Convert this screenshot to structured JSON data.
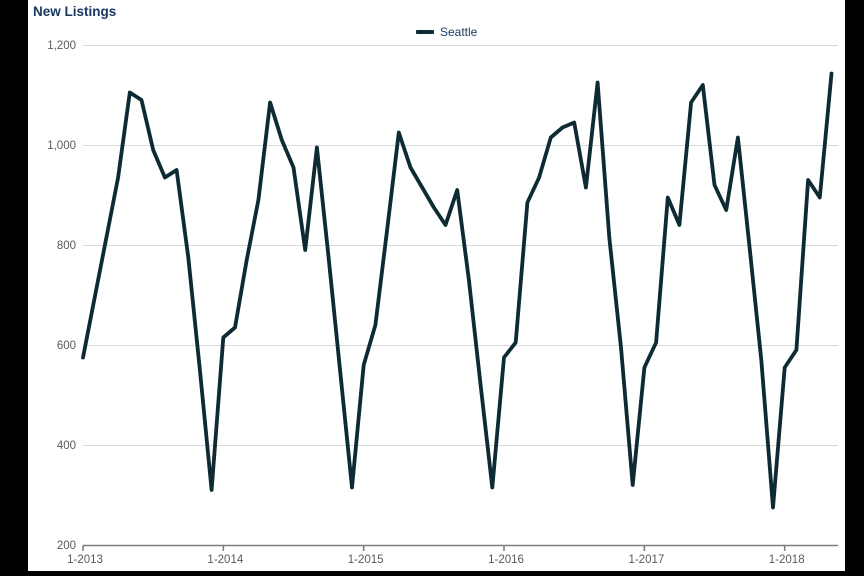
{
  "page": {
    "title": "New Listings",
    "title_color": "#17375e",
    "background_color": "#000000",
    "card_color": "#ffffff"
  },
  "legend": {
    "label": "Seattle",
    "swatch_color": "#0e2a33",
    "text_color": "#17375e"
  },
  "axes": {
    "label_color": "#595959",
    "grid_color": "#d9d9d9",
    "axis_color": "#7f7f7f"
  },
  "chart_data": {
    "type": "line",
    "title": "New Listings",
    "xlabel": "",
    "ylabel": "",
    "ylim": [
      200,
      1200
    ],
    "grid": "horizontal",
    "legend_position": "top-center",
    "x_tick_labels": [
      "1-2013",
      "1-2014",
      "1-2015",
      "1-2016",
      "1-2017",
      "1-2018"
    ],
    "x_tick_month_indices": [
      0,
      12,
      24,
      36,
      48,
      60
    ],
    "y_tick_values": [
      200,
      400,
      600,
      800,
      1000,
      1200
    ],
    "y_tick_labels": [
      "200",
      "400",
      "600",
      "800",
      "1,000",
      "1,200"
    ],
    "x_start": "2013-01",
    "x_end": "2018-05",
    "series": [
      {
        "name": "Seattle",
        "color": "#0e2a33",
        "values": [
          575,
          695,
          815,
          935,
          1105,
          1090,
          990,
          935,
          950,
          775,
          550,
          310,
          615,
          635,
          770,
          890,
          1085,
          1010,
          955,
          790,
          995,
          775,
          545,
          315,
          560,
          640,
          830,
          1025,
          955,
          915,
          875,
          840,
          910,
          730,
          520,
          315,
          575,
          605,
          885,
          935,
          1015,
          1035,
          1045,
          915,
          1125,
          815,
          595,
          320,
          555,
          605,
          895,
          840,
          1085,
          1120,
          920,
          870,
          1015,
          795,
          570,
          275,
          555,
          590,
          930,
          895,
          1143
        ]
      }
    ]
  }
}
